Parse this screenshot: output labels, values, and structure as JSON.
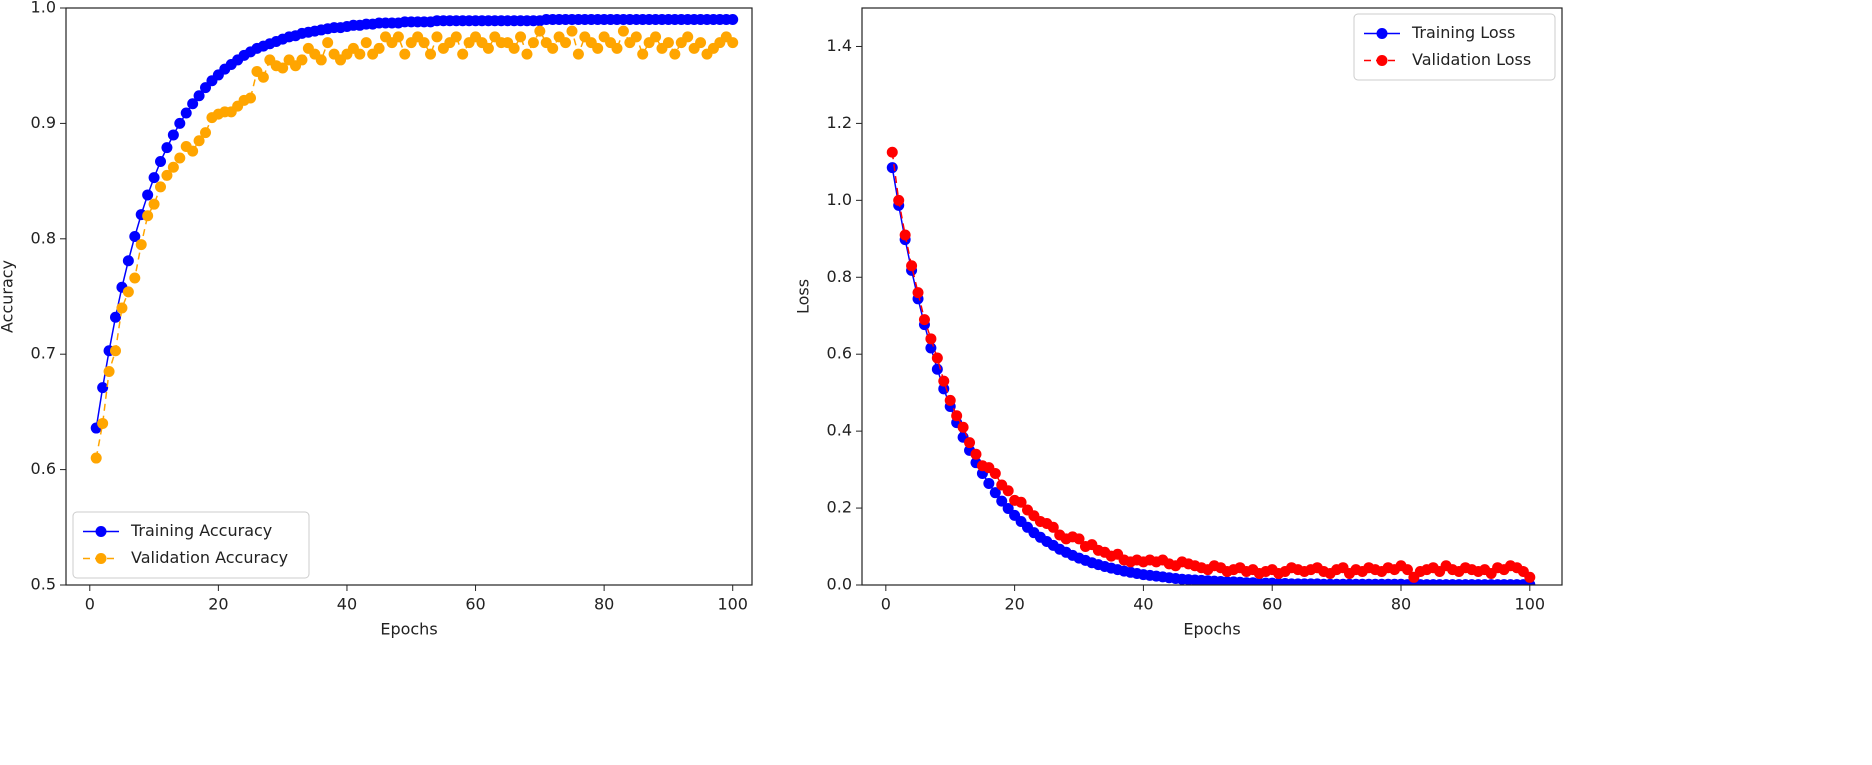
{
  "chart_data": [
    {
      "type": "line",
      "xlabel": "Epochs",
      "ylabel": "Accuracy",
      "x": [
        1,
        2,
        3,
        4,
        5,
        6,
        7,
        8,
        9,
        10,
        11,
        12,
        13,
        14,
        15,
        16,
        17,
        18,
        19,
        20,
        21,
        22,
        23,
        24,
        25,
        26,
        27,
        28,
        29,
        30,
        31,
        32,
        33,
        34,
        35,
        36,
        37,
        38,
        39,
        40,
        41,
        42,
        43,
        44,
        45,
        46,
        47,
        48,
        49,
        50,
        51,
        52,
        53,
        54,
        55,
        56,
        57,
        58,
        59,
        60,
        61,
        62,
        63,
        64,
        65,
        66,
        67,
        68,
        69,
        70,
        71,
        72,
        73,
        74,
        75,
        76,
        77,
        78,
        79,
        80,
        81,
        82,
        83,
        84,
        85,
        86,
        87,
        88,
        89,
        90,
        91,
        92,
        93,
        94,
        95,
        96,
        97,
        98,
        99,
        100
      ],
      "series": [
        {
          "name": "Training Accuracy",
          "color": "#0000ff",
          "linestyle": "solid",
          "marker": "o",
          "values": [
            0.636,
            0.671,
            0.703,
            0.732,
            0.758,
            0.781,
            0.802,
            0.821,
            0.838,
            0.853,
            0.867,
            0.879,
            0.89,
            0.9,
            0.909,
            0.917,
            0.924,
            0.931,
            0.937,
            0.942,
            0.947,
            0.951,
            0.955,
            0.959,
            0.962,
            0.965,
            0.967,
            0.969,
            0.971,
            0.973,
            0.975,
            0.976,
            0.978,
            0.979,
            0.98,
            0.981,
            0.982,
            0.983,
            0.983,
            0.984,
            0.985,
            0.985,
            0.986,
            0.986,
            0.987,
            0.987,
            0.987,
            0.987,
            0.988,
            0.988,
            0.988,
            0.988,
            0.988,
            0.989,
            0.989,
            0.989,
            0.989,
            0.989,
            0.989,
            0.989,
            0.989,
            0.989,
            0.989,
            0.989,
            0.989,
            0.989,
            0.989,
            0.989,
            0.989,
            0.989,
            0.99,
            0.99,
            0.99,
            0.99,
            0.99,
            0.99,
            0.99,
            0.99,
            0.99,
            0.99,
            0.99,
            0.99,
            0.99,
            0.99,
            0.99,
            0.99,
            0.99,
            0.99,
            0.99,
            0.99,
            0.99,
            0.99,
            0.99,
            0.99,
            0.99,
            0.99,
            0.99,
            0.99,
            0.99,
            0.99
          ]
        },
        {
          "name": "Validation Accuracy",
          "color": "#ffa500",
          "linestyle": "dashed",
          "marker": "o",
          "values": [
            0.61,
            0.64,
            0.685,
            0.703,
            0.74,
            0.754,
            0.766,
            0.795,
            0.82,
            0.83,
            0.845,
            0.855,
            0.862,
            0.87,
            0.88,
            0.876,
            0.885,
            0.892,
            0.905,
            0.908,
            0.91,
            0.91,
            0.915,
            0.92,
            0.922,
            0.945,
            0.94,
            0.955,
            0.95,
            0.948,
            0.955,
            0.95,
            0.955,
            0.965,
            0.96,
            0.955,
            0.97,
            0.96,
            0.955,
            0.96,
            0.965,
            0.96,
            0.97,
            0.96,
            0.965,
            0.975,
            0.97,
            0.975,
            0.96,
            0.97,
            0.975,
            0.97,
            0.96,
            0.975,
            0.965,
            0.97,
            0.975,
            0.96,
            0.97,
            0.975,
            0.97,
            0.965,
            0.975,
            0.97,
            0.97,
            0.965,
            0.975,
            0.96,
            0.97,
            0.98,
            0.97,
            0.965,
            0.975,
            0.97,
            0.98,
            0.96,
            0.975,
            0.97,
            0.965,
            0.975,
            0.97,
            0.965,
            0.98,
            0.97,
            0.975,
            0.96,
            0.97,
            0.975,
            0.965,
            0.97,
            0.96,
            0.97,
            0.975,
            0.965,
            0.97,
            0.96,
            0.965,
            0.97,
            0.975,
            0.97
          ]
        }
      ],
      "xlim": [
        -3.7,
        103
      ],
      "xticks": [
        0,
        20,
        40,
        60,
        80,
        100
      ],
      "ylim": [
        0.5,
        1.0
      ],
      "yticks": [
        0.5,
        0.6,
        0.7,
        0.8,
        0.9,
        {
          "value": 1,
          "label": "1.0"
        }
      ],
      "grid": false,
      "legend": "lower left"
    },
    {
      "type": "line",
      "xlabel": "Epochs",
      "ylabel": "Loss",
      "x": [
        1,
        2,
        3,
        4,
        5,
        6,
        7,
        8,
        9,
        10,
        11,
        12,
        13,
        14,
        15,
        16,
        17,
        18,
        19,
        20,
        21,
        22,
        23,
        24,
        25,
        26,
        27,
        28,
        29,
        30,
        31,
        32,
        33,
        34,
        35,
        36,
        37,
        38,
        39,
        40,
        41,
        42,
        43,
        44,
        45,
        46,
        47,
        48,
        49,
        50,
        51,
        52,
        53,
        54,
        55,
        56,
        57,
        58,
        59,
        60,
        61,
        62,
        63,
        64,
        65,
        66,
        67,
        68,
        69,
        70,
        71,
        72,
        73,
        74,
        75,
        76,
        77,
        78,
        79,
        80,
        81,
        82,
        83,
        84,
        85,
        86,
        87,
        88,
        89,
        90,
        91,
        92,
        93,
        94,
        95,
        96,
        97,
        98,
        99,
        100
      ],
      "series": [
        {
          "name": "Training Loss",
          "color": "#0000ff",
          "linestyle": "solid",
          "marker": "o",
          "values": [
            1.085,
            0.987,
            0.898,
            0.818,
            0.744,
            0.677,
            0.616,
            0.561,
            0.51,
            0.464,
            0.422,
            0.384,
            0.35,
            0.318,
            0.29,
            0.264,
            0.24,
            0.218,
            0.199,
            0.181,
            0.165,
            0.15,
            0.136,
            0.124,
            0.113,
            0.103,
            0.093,
            0.085,
            0.077,
            0.07,
            0.064,
            0.058,
            0.053,
            0.048,
            0.044,
            0.04,
            0.036,
            0.033,
            0.03,
            0.027,
            0.025,
            0.023,
            0.021,
            0.019,
            0.017,
            0.015,
            0.014,
            0.013,
            0.012,
            0.011,
            0.01,
            0.009,
            0.008,
            0.008,
            0.007,
            0.006,
            0.006,
            0.005,
            0.005,
            0.005,
            0.004,
            0.004,
            0.003,
            0.003,
            0.003,
            0.003,
            0.003,
            0.002,
            0.002,
            0.002,
            0.002,
            0.002,
            0.002,
            0.002,
            0.002,
            0.002,
            0.002,
            0.002,
            0.002,
            0.002,
            0.001,
            0.001,
            0.001,
            0.001,
            0.001,
            0.001,
            0.001,
            0.001,
            0.001,
            0.001,
            0.001,
            0.001,
            0.001,
            0.001,
            0.001,
            0.001,
            0.001,
            0.001,
            0.001,
            0.001
          ]
        },
        {
          "name": "Validation Loss",
          "color": "#ff0000",
          "linestyle": "dashed",
          "marker": "o",
          "values": [
            1.125,
            1.0,
            0.91,
            0.83,
            0.76,
            0.69,
            0.64,
            0.59,
            0.53,
            0.48,
            0.44,
            0.41,
            0.37,
            0.34,
            0.31,
            0.305,
            0.29,
            0.26,
            0.245,
            0.22,
            0.215,
            0.195,
            0.18,
            0.165,
            0.16,
            0.15,
            0.13,
            0.12,
            0.125,
            0.12,
            0.1,
            0.105,
            0.09,
            0.085,
            0.075,
            0.08,
            0.065,
            0.06,
            0.065,
            0.06,
            0.065,
            0.06,
            0.065,
            0.055,
            0.05,
            0.06,
            0.055,
            0.05,
            0.045,
            0.04,
            0.05,
            0.045,
            0.035,
            0.04,
            0.045,
            0.035,
            0.04,
            0.03,
            0.035,
            0.04,
            0.03,
            0.035,
            0.045,
            0.04,
            0.035,
            0.04,
            0.045,
            0.035,
            0.03,
            0.04,
            0.045,
            0.03,
            0.04,
            0.035,
            0.045,
            0.04,
            0.035,
            0.045,
            0.04,
            0.05,
            0.04,
            0.02,
            0.035,
            0.04,
            0.045,
            0.035,
            0.05,
            0.04,
            0.035,
            0.045,
            0.04,
            0.035,
            0.04,
            0.03,
            0.045,
            0.04,
            0.05,
            0.045,
            0.035,
            0.02
          ]
        }
      ],
      "xlim": [
        -3.7,
        105
      ],
      "xticks": [
        0,
        20,
        40,
        60,
        80,
        100
      ],
      "ylim": [
        0,
        1.5
      ],
      "yticks": [
        {
          "value": 0,
          "label": "0.0"
        },
        0.2,
        0.4,
        0.6,
        0.8,
        {
          "value": 1,
          "label": "1.0"
        },
        1.2,
        1.4
      ],
      "grid": false,
      "legend": "upper right"
    }
  ]
}
